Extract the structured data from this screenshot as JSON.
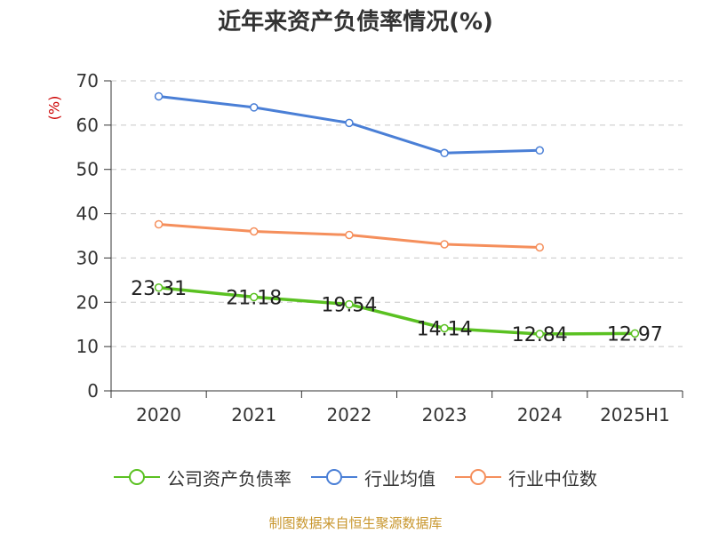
{
  "chart_data": {
    "type": "line",
    "title": "近年来资产负债率情况(%)",
    "unit_label": "(%)",
    "categories": [
      "2020",
      "2021",
      "2022",
      "2023",
      "2024",
      "2025H1"
    ],
    "ylim": [
      0,
      70
    ],
    "yticks": [
      0,
      10,
      20,
      30,
      40,
      50,
      60,
      70
    ],
    "grid": true,
    "legend_position": "bottom",
    "series": [
      {
        "name": "公司资产负债率",
        "color": "#5ac121",
        "values": [
          23.31,
          21.18,
          19.54,
          14.14,
          12.84,
          12.97
        ],
        "labels": [
          "23.31",
          "21.18",
          "19.54",
          "14.14",
          "12.84",
          "12.97"
        ]
      },
      {
        "name": "行业均值",
        "color": "#4a7fd6",
        "values": [
          66.5,
          64.0,
          60.5,
          53.7,
          54.3,
          null
        ]
      },
      {
        "name": "行业中位数",
        "color": "#f58f5c",
        "values": [
          37.6,
          36.0,
          35.2,
          33.1,
          32.4,
          null
        ]
      }
    ]
  },
  "source": "制图数据来自恒生聚源数据库"
}
